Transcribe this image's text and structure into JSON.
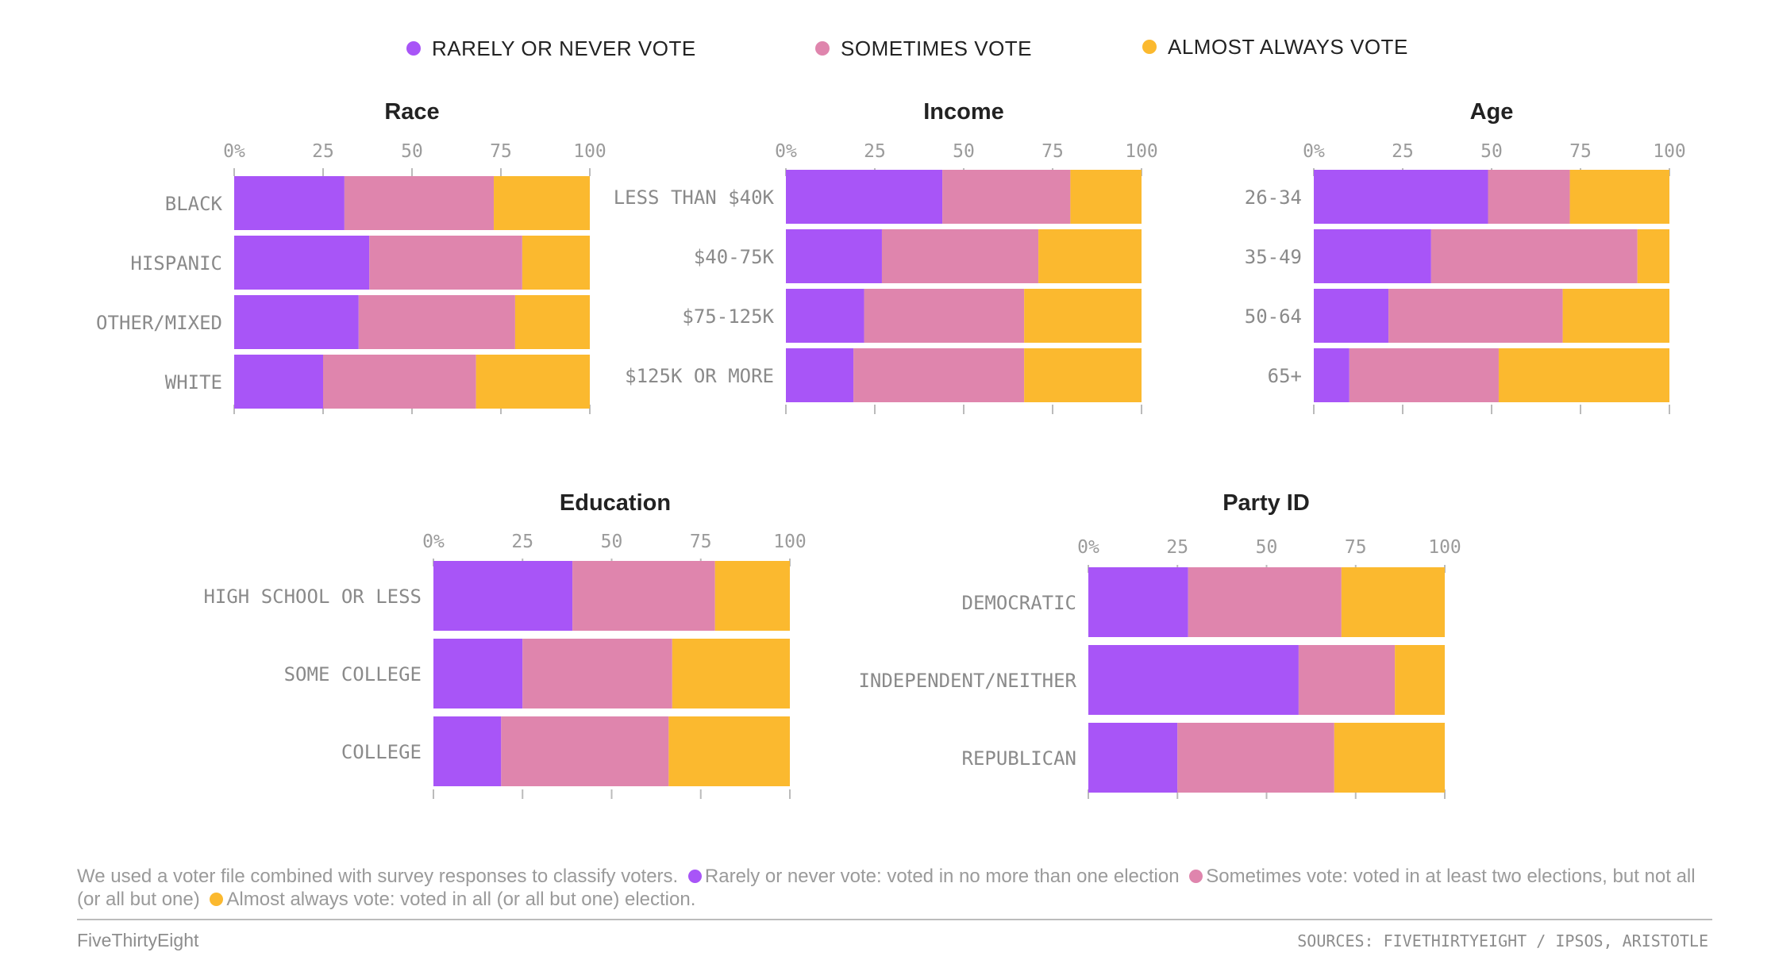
{
  "legend": [
    {
      "label": "RARELY OR NEVER VOTE",
      "color": "#a855f7"
    },
    {
      "label": "SOMETIMES VOTE",
      "color": "#df85ad"
    },
    {
      "label": "ALMOST ALWAYS VOTE",
      "color": "#fbb92f"
    }
  ],
  "chart_data": [
    {
      "type": "bar",
      "stacked": true,
      "orientation": "horizontal",
      "title": "Race",
      "categories": [
        "BLACK",
        "HISPANIC",
        "OTHER/MIXED",
        "WHITE"
      ],
      "series": [
        {
          "name": "RARELY OR NEVER VOTE",
          "values": [
            31,
            38,
            35,
            25
          ]
        },
        {
          "name": "SOMETIMES VOTE",
          "values": [
            42,
            43,
            44,
            43
          ]
        },
        {
          "name": "ALMOST ALWAYS VOTE",
          "values": [
            27,
            19,
            21,
            32
          ]
        }
      ],
      "xlim": [
        0,
        100
      ],
      "xticks": [
        "0%",
        "25",
        "50",
        "75",
        "100"
      ]
    },
    {
      "type": "bar",
      "stacked": true,
      "orientation": "horizontal",
      "title": "Income",
      "categories": [
        "LESS THAN $40K",
        "$40-75K",
        "$75-125K",
        "$125K OR MORE"
      ],
      "series": [
        {
          "name": "RARELY OR NEVER VOTE",
          "values": [
            44,
            27,
            22,
            19
          ]
        },
        {
          "name": "SOMETIMES VOTE",
          "values": [
            36,
            44,
            45,
            48
          ]
        },
        {
          "name": "ALMOST ALWAYS VOTE",
          "values": [
            20,
            29,
            33,
            33
          ]
        }
      ],
      "xlim": [
        0,
        100
      ],
      "xticks": [
        "0%",
        "25",
        "50",
        "75",
        "100"
      ]
    },
    {
      "type": "bar",
      "stacked": true,
      "orientation": "horizontal",
      "title": "Age",
      "categories": [
        "26-34",
        "35-49",
        "50-64",
        "65+"
      ],
      "series": [
        {
          "name": "RARELY OR NEVER VOTE",
          "values": [
            49,
            33,
            21,
            10
          ]
        },
        {
          "name": "SOMETIMES VOTE",
          "values": [
            23,
            58,
            49,
            42
          ]
        },
        {
          "name": "ALMOST ALWAYS VOTE",
          "values": [
            28,
            9,
            30,
            48
          ]
        }
      ],
      "xlim": [
        0,
        100
      ],
      "xticks": [
        "0%",
        "25",
        "50",
        "75",
        "100"
      ]
    },
    {
      "type": "bar",
      "stacked": true,
      "orientation": "horizontal",
      "title": "Education",
      "categories": [
        "HIGH SCHOOL OR LESS",
        "SOME COLLEGE",
        "COLLEGE"
      ],
      "series": [
        {
          "name": "RARELY OR NEVER VOTE",
          "values": [
            39,
            25,
            19
          ]
        },
        {
          "name": "SOMETIMES VOTE",
          "values": [
            40,
            42,
            47
          ]
        },
        {
          "name": "ALMOST ALWAYS VOTE",
          "values": [
            21,
            33,
            34
          ]
        }
      ],
      "xlim": [
        0,
        100
      ],
      "xticks": [
        "0%",
        "25",
        "50",
        "75",
        "100"
      ]
    },
    {
      "type": "bar",
      "stacked": true,
      "orientation": "horizontal",
      "title": "Party ID",
      "categories": [
        "DEMOCRATIC",
        "INDEPENDENT/NEITHER",
        "REPUBLICAN"
      ],
      "series": [
        {
          "name": "RARELY OR NEVER VOTE",
          "values": [
            28,
            59,
            25
          ]
        },
        {
          "name": "SOMETIMES VOTE",
          "values": [
            43,
            27,
            44
          ]
        },
        {
          "name": "ALMOST ALWAYS VOTE",
          "values": [
            29,
            14,
            31
          ]
        }
      ],
      "xlim": [
        0,
        100
      ],
      "xticks": [
        "0%",
        "25",
        "50",
        "75",
        "100"
      ]
    }
  ],
  "footnote": {
    "intro": "We used a voter file combined with survey responses to classify voters.",
    "rarely": "Rarely or never vote: voted in no more than one election",
    "sometimes": "Sometimes vote: voted in at least two elections, but not all (or all but one)",
    "always": "Almost always vote: voted in all (or all but one) election."
  },
  "brand": "FiveThirtyEight",
  "sources": "SOURCES: FIVETHIRTYEIGHT / IPSOS, ARISTOTLE"
}
